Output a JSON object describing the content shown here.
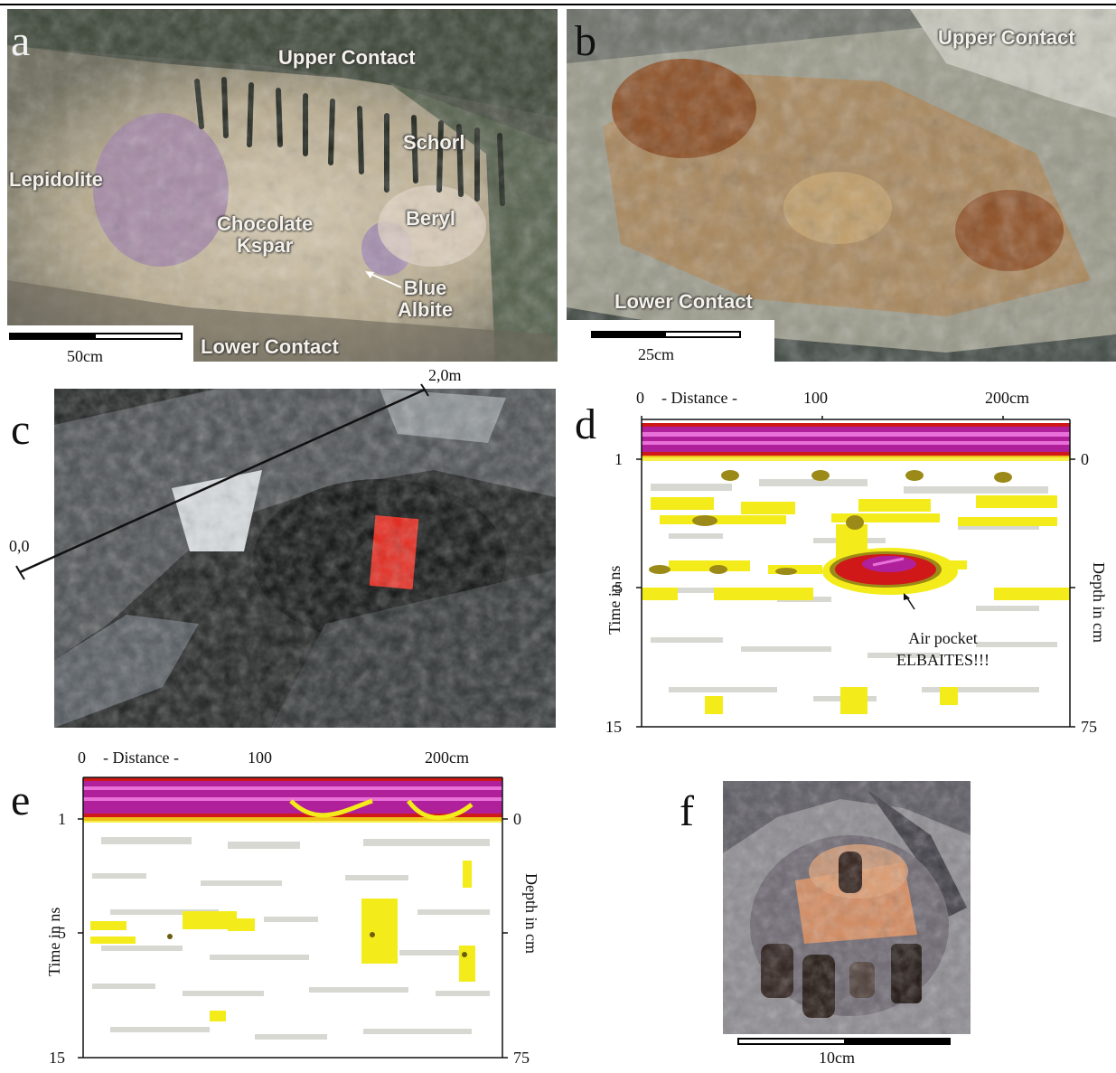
{
  "panels": {
    "a": {
      "letter": "a",
      "labels": {
        "upper_contact": "Upper Contact",
        "schorl": "Schorl",
        "lepidolite": "Lepidolite",
        "chocolate_kspar": "Chocolate\nKspar",
        "beryl": "Beryl",
        "blue_albite": "Blue\nAlbite",
        "lower_contact": "Lower Contact"
      },
      "scale": "50cm"
    },
    "b": {
      "letter": "b",
      "labels": {
        "upper_contact": "Upper Contact",
        "lower_contact": "Lower Contact"
      },
      "scale": "25cm"
    },
    "c": {
      "letter": "c",
      "start_label": "0,0",
      "end_label": "2,0m"
    },
    "d": {
      "letter": "d",
      "x_ticks": [
        "0",
        "- Distance -",
        "100",
        "200cm"
      ],
      "y_left_ticks": [
        "1",
        "5",
        "15"
      ],
      "y_right_ticks": [
        "0",
        "75"
      ],
      "y_left_label": "Time in ns",
      "y_right_label": "Depth in cm",
      "annotation": "Air pocket\nELBAITES!!!"
    },
    "e": {
      "letter": "e",
      "x_ticks": [
        "0",
        "- Distance -",
        "100",
        "200cm"
      ],
      "y_left_ticks": [
        "1",
        "5",
        "15"
      ],
      "y_right_ticks": [
        "0",
        "75"
      ],
      "y_left_label": "Time in ns",
      "y_right_label": "Depth in cm"
    },
    "f": {
      "letter": "f",
      "scale": "10cm"
    }
  },
  "colors": {
    "gpr_magenta": "#b0209a",
    "gpr_pink": "#e870d8",
    "gpr_red": "#d01818",
    "gpr_olive": "#9c8a18",
    "gpr_yellow": "#f4ec1a",
    "gpr_grey": "#d8d8d2"
  }
}
